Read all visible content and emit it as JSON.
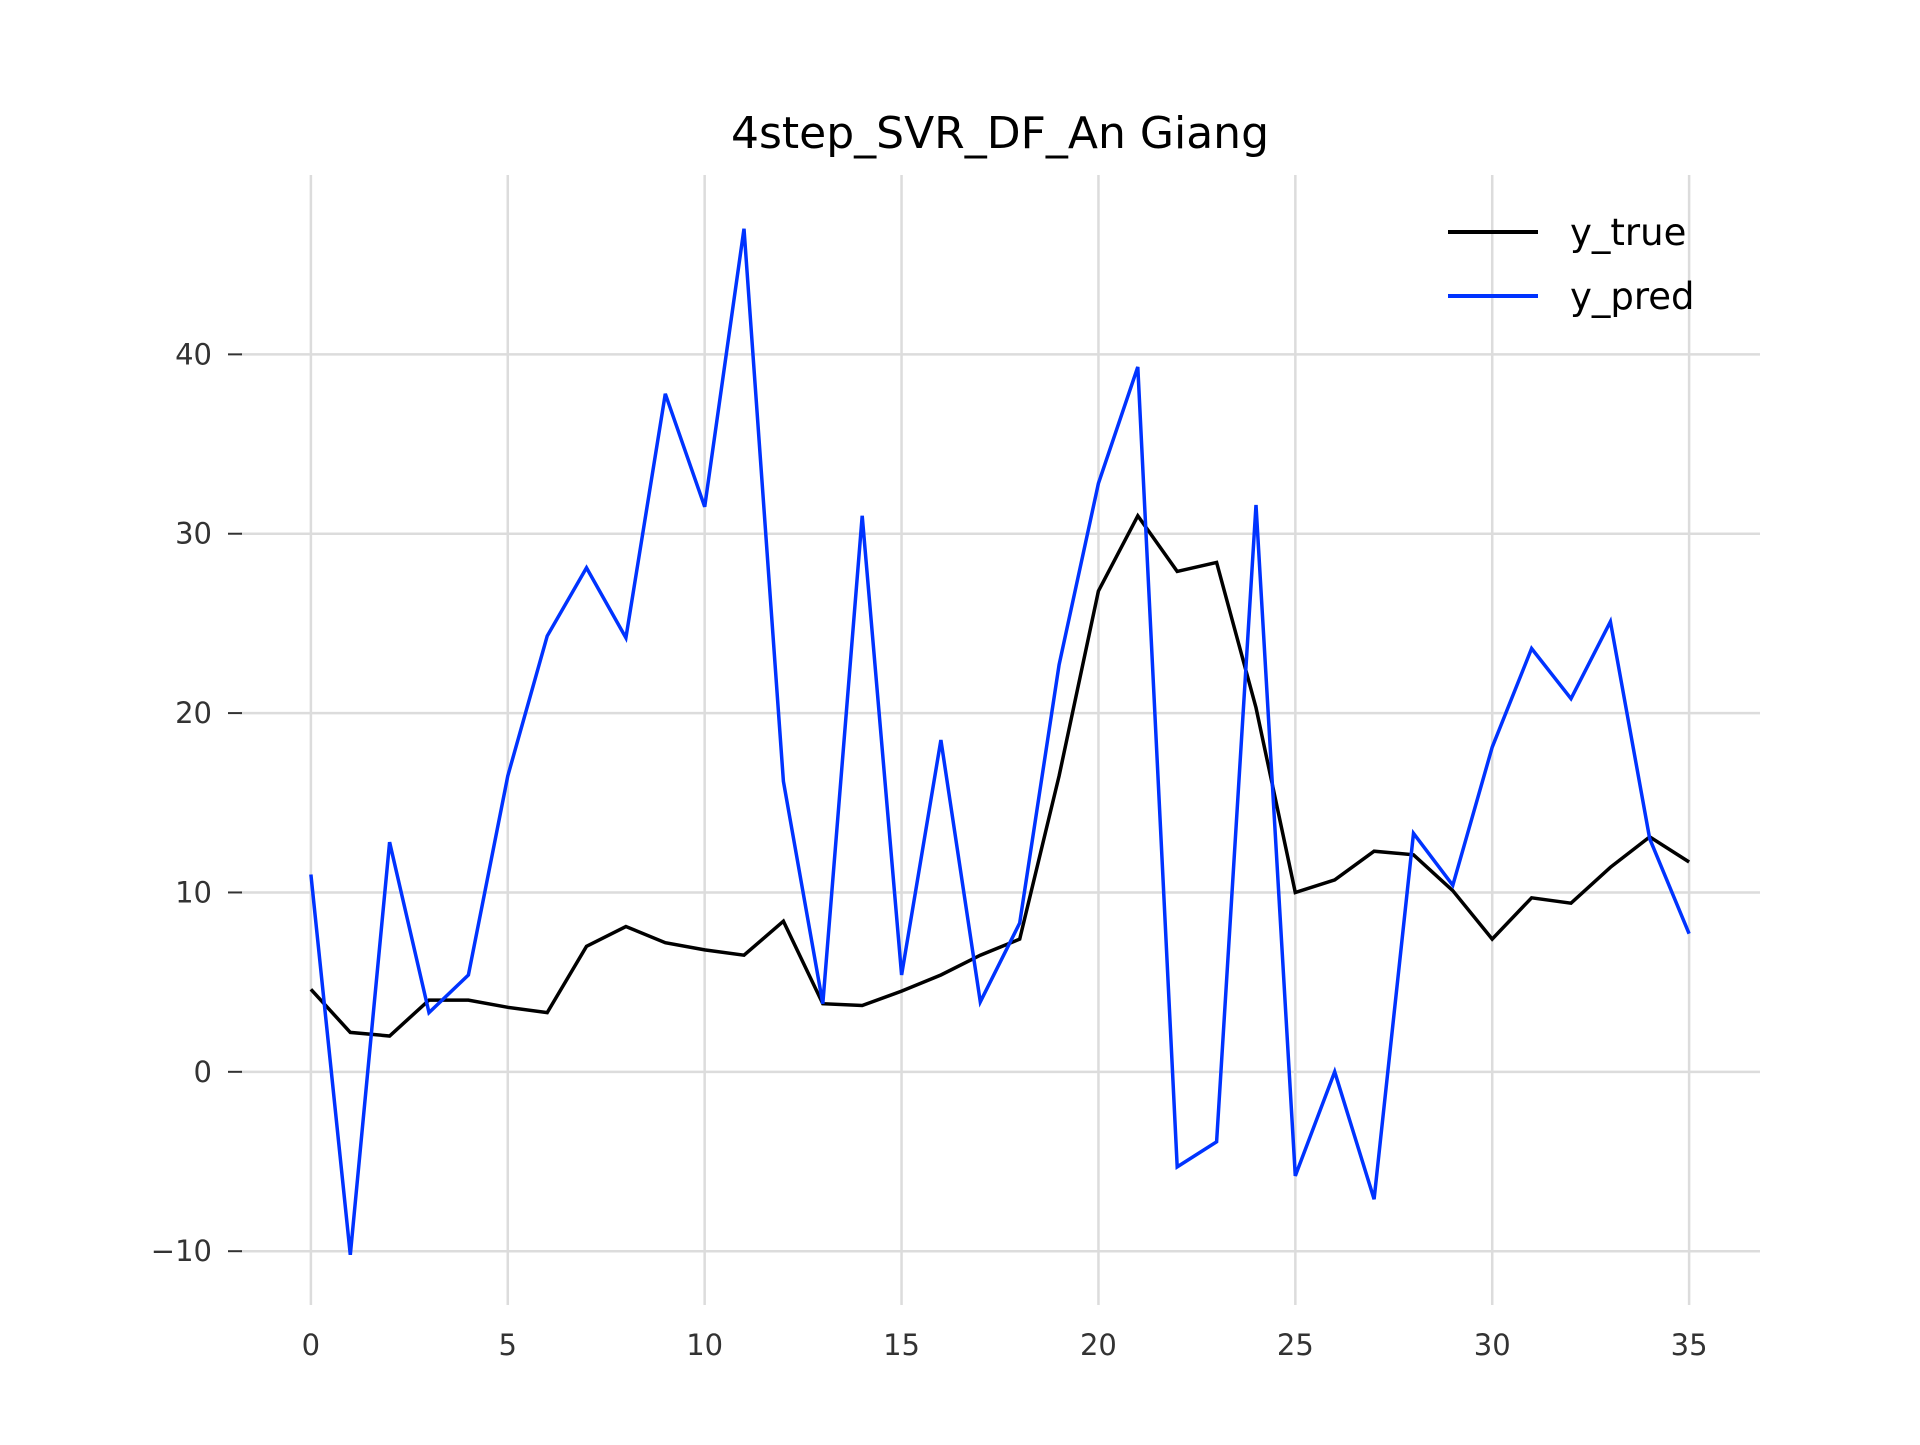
{
  "chart_data": {
    "type": "line",
    "title": "4step_SVR_DF_An Giang",
    "xlabel": "",
    "ylabel": "",
    "xlim": [
      -1.8,
      36.8
    ],
    "ylim": [
      -13,
      50
    ],
    "x_ticks": [
      0,
      5,
      10,
      15,
      20,
      25,
      30,
      35
    ],
    "x_tick_labels": [
      "0",
      "5",
      "10",
      "15",
      "20",
      "25",
      "30",
      "35"
    ],
    "y_ticks": [
      -10,
      0,
      10,
      20,
      30,
      40
    ],
    "y_tick_labels": [
      "−10",
      "0",
      "10",
      "20",
      "30",
      "40"
    ],
    "grid": true,
    "legend_position": "top-right",
    "x": [
      0,
      1,
      2,
      3,
      4,
      5,
      6,
      7,
      8,
      9,
      10,
      11,
      12,
      13,
      14,
      15,
      16,
      17,
      18,
      19,
      20,
      21,
      22,
      23,
      24,
      25,
      26,
      27,
      28,
      29,
      30,
      31,
      32,
      33,
      34,
      35
    ],
    "series": [
      {
        "name": "y_true",
        "color": "#000000",
        "values": [
          4.6,
          2.2,
          2.0,
          4.0,
          4.0,
          3.6,
          3.3,
          7.0,
          8.1,
          7.2,
          6.8,
          6.5,
          8.4,
          3.8,
          3.7,
          4.5,
          5.4,
          6.5,
          7.4,
          16.5,
          26.8,
          31.0,
          27.9,
          28.4,
          20.3,
          10.0,
          10.7,
          12.3,
          12.1,
          10.1,
          7.4,
          9.7,
          9.4,
          11.4,
          13.1,
          11.7
        ]
      },
      {
        "name": "y_pred",
        "color": "#0033ff",
        "values": [
          11.0,
          -10.2,
          12.8,
          3.3,
          5.4,
          16.5,
          24.3,
          28.1,
          24.2,
          37.8,
          31.5,
          47.0,
          16.2,
          3.8,
          31.0,
          5.4,
          18.5,
          3.9,
          8.3,
          22.7,
          32.8,
          39.3,
          -5.3,
          -3.9,
          31.6,
          -5.8,
          0.0,
          -7.1,
          13.3,
          10.4,
          18.1,
          23.6,
          20.8,
          25.1,
          13.0,
          7.7
        ]
      }
    ]
  }
}
